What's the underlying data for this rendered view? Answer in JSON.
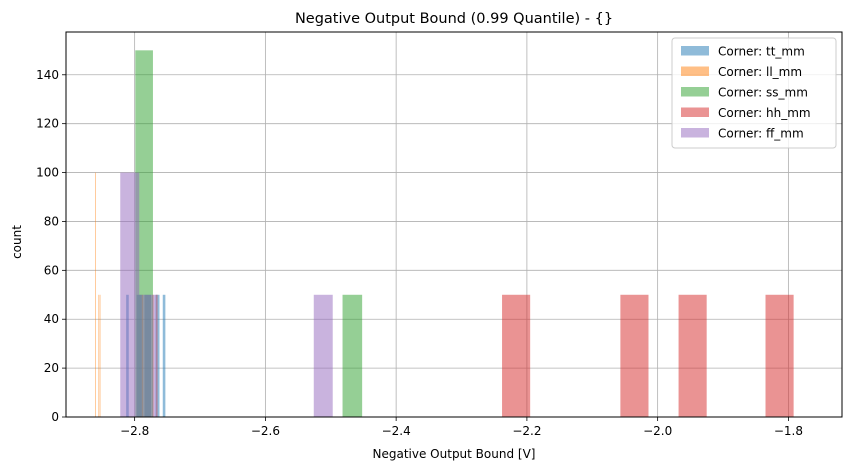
{
  "chart_data": {
    "type": "bar",
    "title": "Negative Output Bound (0.99 Quantile) - {}",
    "xlabel": "Negative Output Bound [V]",
    "ylabel": "count",
    "xlim": [
      -2.905,
      -1.718
    ],
    "ylim": [
      0,
      157.5
    ],
    "xticks": [
      -2.8,
      -2.6,
      -2.4,
      -2.2,
      -2.0,
      -1.8
    ],
    "xtick_labels": [
      "−2.8",
      "−2.6",
      "−2.4",
      "−2.2",
      "−2.0",
      "−1.8"
    ],
    "yticks": [
      0,
      20,
      40,
      60,
      80,
      100,
      120,
      140
    ],
    "ytick_labels": [
      "0",
      "20",
      "40",
      "60",
      "80",
      "100",
      "120",
      "140"
    ],
    "grid": true,
    "legend_position": "top-right",
    "series": [
      {
        "name": "Corner: tt_mm",
        "color": "#1f77b4",
        "bars": [
          [
            -2.813,
            -2.809,
            50
          ],
          [
            -2.797,
            -2.789,
            50
          ],
          [
            -2.785,
            -2.775,
            50
          ],
          [
            -2.768,
            -2.762,
            50
          ],
          [
            -2.757,
            -2.753,
            50
          ]
        ]
      },
      {
        "name": "Corner: ll_mm",
        "color": "#ff7f0e",
        "bars": [
          [
            -2.8605,
            -2.8595,
            100
          ],
          [
            -2.8555,
            -2.8545,
            50
          ],
          [
            -2.8535,
            -2.8525,
            50
          ],
          [
            -2.789,
            -2.787,
            50
          ],
          [
            -2.773,
            -2.771,
            50
          ],
          [
            -2.767,
            -2.765,
            50
          ]
        ]
      },
      {
        "name": "Corner: ss_mm",
        "color": "#2ca02c",
        "bars": [
          [
            -2.799,
            -2.772,
            150
          ],
          [
            -2.482,
            -2.452,
            50
          ]
        ]
      },
      {
        "name": "Corner: hh_mm",
        "color": "#d62728",
        "bars": [
          [
            -2.238,
            -2.195,
            50
          ],
          [
            -2.057,
            -2.014,
            50
          ],
          [
            -1.968,
            -1.925,
            50
          ],
          [
            -1.835,
            -1.792,
            50
          ]
        ]
      },
      {
        "name": "Corner: ff_mm",
        "color": "#9467bd",
        "bars": [
          [
            -2.822,
            -2.793,
            100
          ],
          [
            -2.793,
            -2.765,
            50
          ],
          [
            -2.526,
            -2.497,
            50
          ]
        ]
      }
    ],
    "bar_alpha": 0.5
  }
}
